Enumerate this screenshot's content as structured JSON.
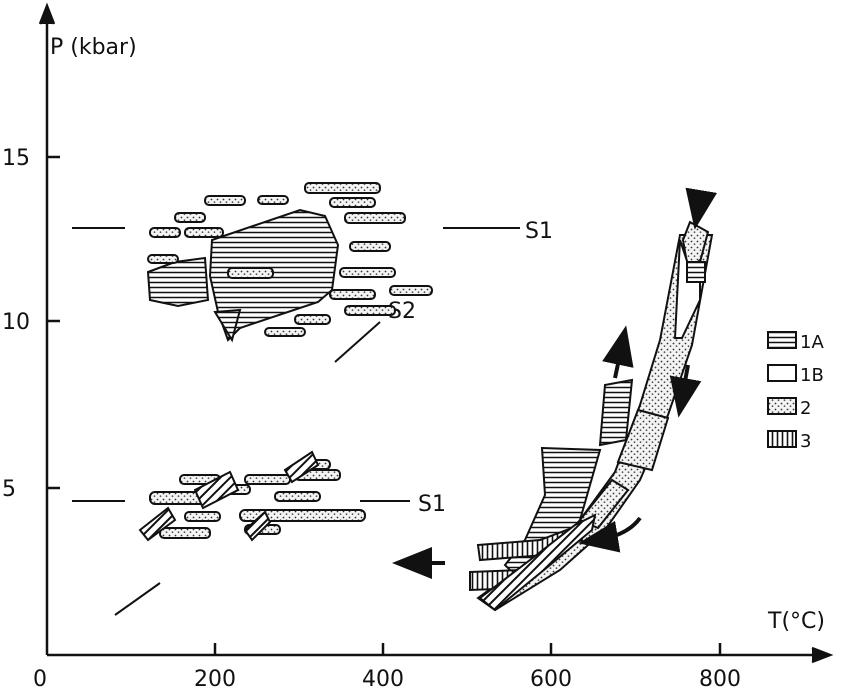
{
  "axes": {
    "x": {
      "label": "T(°C)",
      "ticks": [
        0,
        200,
        400,
        600,
        800
      ]
    },
    "y": {
      "label": "P (kbar)",
      "ticks": [
        5,
        10,
        15
      ]
    }
  },
  "annotations": {
    "s1_upper": "S1",
    "s2": "S2",
    "s1_lower": "S1"
  },
  "legend": [
    {
      "label": "1A"
    },
    {
      "label": "1B"
    },
    {
      "label": "2"
    },
    {
      "label": "3"
    }
  ]
}
